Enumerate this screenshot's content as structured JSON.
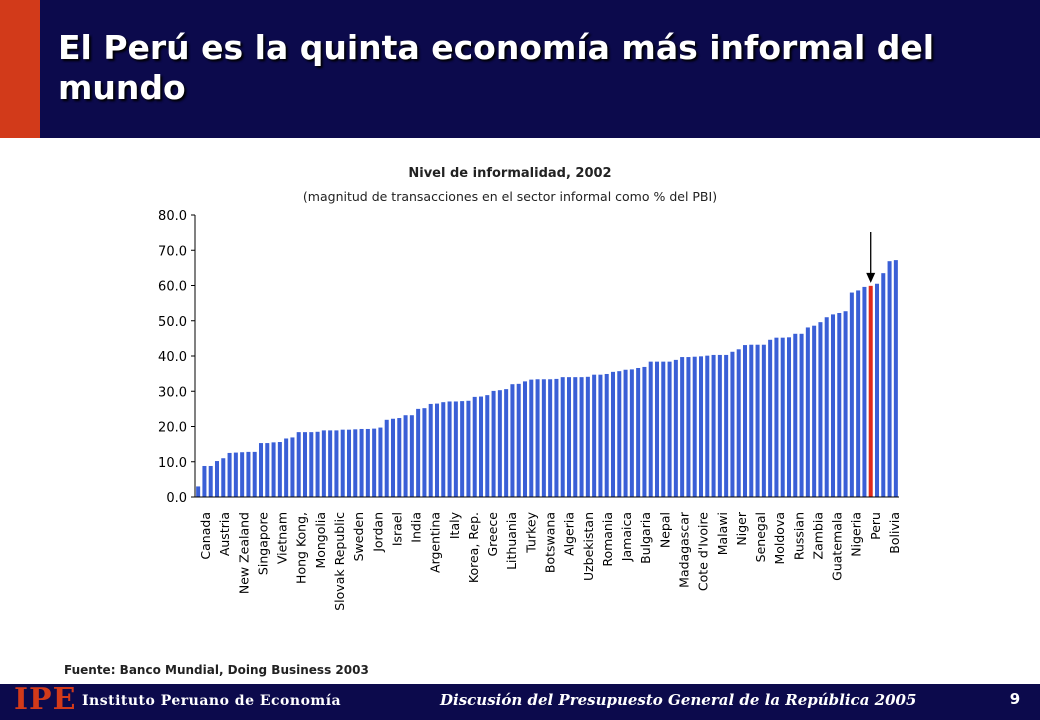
{
  "slide": {
    "title": "El Perú es la quinta economía más informal del mundo",
    "source": "Fuente: Banco Mundial, Doing Business 2003",
    "page_number": "9"
  },
  "footer": {
    "logo": "IPE",
    "organization": "Instituto Peruano de Economía",
    "event": "Discusión del Presupuesto General de la República 2005"
  },
  "colors": {
    "header_background": "#0c0a4c",
    "header_accent": "#d23a1a",
    "bar": "#3a5fd6",
    "highlight_bar": "#e02a1c"
  },
  "chart_data": {
    "type": "bar",
    "title": "Nivel de informalidad, 2002",
    "subtitle": "(magnitud de transacciones en el sector informal como % del PBI)",
    "xlabel": "",
    "ylabel": "",
    "ylim": [
      0,
      80
    ],
    "yticks": [
      "0.0",
      "10.0",
      "20.0",
      "30.0",
      "40.0",
      "50.0",
      "60.0",
      "70.0",
      "80.0"
    ],
    "grid": false,
    "legend": "none",
    "labeled_categories": [
      "Canada",
      "Austria",
      "New Zealand",
      "Singapore",
      "Vietnam",
      "Hong Kong,",
      "Mongolia",
      "Slovak Republic",
      "Sweden",
      "Jordan",
      "Israel",
      "India",
      "Argentina",
      "Italy",
      "Korea, Rep.",
      "Greece",
      "Lithuania",
      "Turkey",
      "Botswana",
      "Algeria",
      "Uzbekistan",
      "Romania",
      "Jamaica",
      "Bulgaria",
      "Nepal",
      "Madagascar",
      "Cote d'Ivoire",
      "Malawi",
      "Niger",
      "Senegal",
      "Moldova",
      "Russian",
      "Zambia",
      "Guatemala",
      "Nigeria",
      "Peru",
      "Bolivia"
    ],
    "values": [
      3.0,
      8.8,
      8.8,
      10.2,
      11.0,
      12.5,
      12.6,
      12.7,
      12.8,
      12.8,
      15.3,
      15.3,
      15.5,
      15.6,
      16.6,
      16.9,
      18.4,
      18.4,
      18.4,
      18.5,
      18.9,
      18.9,
      18.9,
      19.1,
      19.1,
      19.2,
      19.3,
      19.3,
      19.4,
      19.7,
      21.9,
      22.2,
      22.4,
      23.2,
      23.2,
      25.0,
      25.2,
      26.4,
      26.5,
      26.9,
      27.1,
      27.1,
      27.2,
      27.3,
      28.4,
      28.5,
      28.9,
      30.1,
      30.3,
      30.6,
      32.0,
      32.1,
      32.8,
      33.3,
      33.4,
      33.4,
      33.4,
      33.5,
      34.0,
      34.0,
      34.0,
      34.0,
      34.1,
      34.7,
      34.7,
      34.9,
      35.5,
      35.7,
      36.1,
      36.2,
      36.6,
      36.9,
      38.4,
      38.4,
      38.4,
      38.4,
      38.9,
      39.7,
      39.7,
      39.8,
      39.9,
      40.1,
      40.3,
      40.3,
      40.3,
      41.2,
      41.9,
      43.1,
      43.2,
      43.2,
      43.2,
      44.6,
      45.2,
      45.2,
      45.3,
      46.3,
      46.3,
      48.1,
      48.6,
      49.6,
      51.0,
      51.8,
      52.2,
      52.7,
      58.0,
      58.6,
      59.6,
      59.9,
      60.5,
      63.5,
      66.9,
      67.2
    ],
    "highlight": "Peru",
    "highlight_value": 59.9,
    "arrow_target": "Peru"
  }
}
